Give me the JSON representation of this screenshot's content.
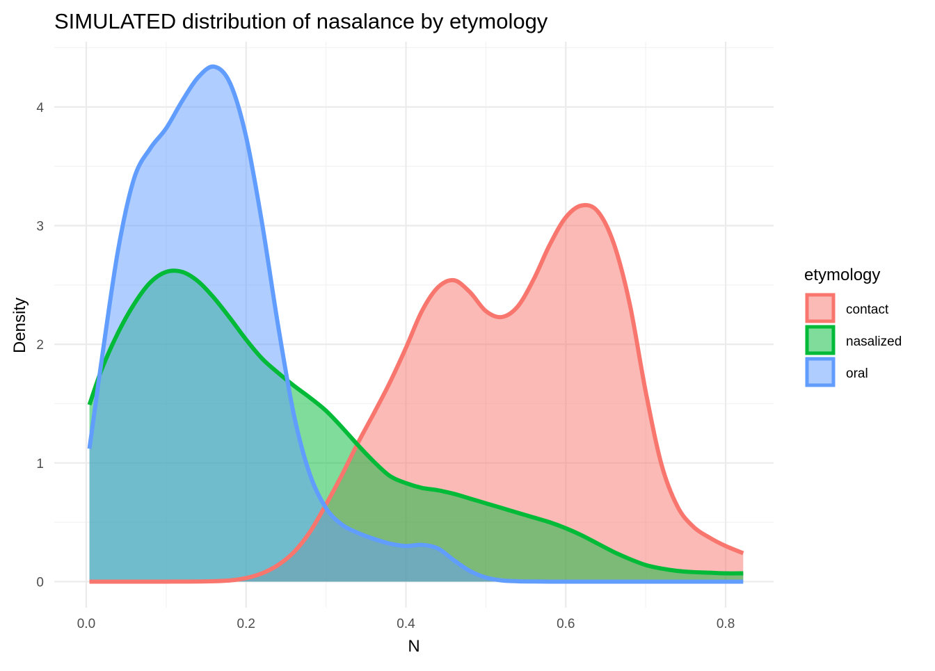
{
  "chart_data": {
    "type": "area",
    "subtype": "density",
    "title": "SIMULATED distribution of nasalance by etymology",
    "xlabel": "N",
    "ylabel": "Density",
    "xlim": [
      -0.04,
      0.86
    ],
    "ylim": [
      -0.22,
      4.55
    ],
    "xticks": [
      0.0,
      0.2,
      0.4,
      0.6,
      0.8
    ],
    "xtick_labels": [
      "0.0",
      "0.2",
      "0.4",
      "0.6",
      "0.8"
    ],
    "yticks": [
      0,
      1,
      2,
      3,
      4
    ],
    "ytick_labels": [
      "0",
      "1",
      "2",
      "3",
      "4"
    ],
    "grid": true,
    "legend": {
      "title": "etymology",
      "position": "right"
    },
    "fill_opacity": 0.5,
    "series": [
      {
        "name": "contact",
        "color": "#F8766D",
        "x": [
          0.004,
          0.05,
          0.1,
          0.15,
          0.18,
          0.2,
          0.22,
          0.24,
          0.26,
          0.28,
          0.3,
          0.32,
          0.34,
          0.36,
          0.38,
          0.4,
          0.42,
          0.44,
          0.46,
          0.48,
          0.5,
          0.52,
          0.54,
          0.56,
          0.58,
          0.6,
          0.62,
          0.64,
          0.66,
          0.68,
          0.7,
          0.72,
          0.74,
          0.76,
          0.78,
          0.8,
          0.822
        ],
        "y": [
          0.0,
          0.0,
          0.0,
          0.002,
          0.01,
          0.03,
          0.07,
          0.14,
          0.25,
          0.42,
          0.65,
          0.9,
          1.17,
          1.42,
          1.68,
          1.97,
          2.28,
          2.48,
          2.54,
          2.44,
          2.28,
          2.23,
          2.32,
          2.55,
          2.84,
          3.07,
          3.17,
          3.12,
          2.85,
          2.34,
          1.6,
          0.98,
          0.63,
          0.46,
          0.37,
          0.3,
          0.24
        ]
      },
      {
        "name": "nasalized",
        "color": "#00BA38",
        "x": [
          0.004,
          0.02,
          0.04,
          0.06,
          0.08,
          0.1,
          0.12,
          0.14,
          0.16,
          0.18,
          0.2,
          0.22,
          0.24,
          0.26,
          0.28,
          0.3,
          0.32,
          0.34,
          0.36,
          0.38,
          0.4,
          0.42,
          0.44,
          0.46,
          0.48,
          0.5,
          0.52,
          0.54,
          0.56,
          0.58,
          0.6,
          0.62,
          0.64,
          0.66,
          0.68,
          0.7,
          0.72,
          0.74,
          0.76,
          0.78,
          0.8,
          0.822
        ],
        "y": [
          1.49,
          1.8,
          2.1,
          2.34,
          2.52,
          2.61,
          2.61,
          2.53,
          2.39,
          2.22,
          2.04,
          1.88,
          1.76,
          1.65,
          1.55,
          1.44,
          1.3,
          1.15,
          1.01,
          0.89,
          0.83,
          0.79,
          0.77,
          0.74,
          0.7,
          0.66,
          0.62,
          0.58,
          0.54,
          0.5,
          0.45,
          0.39,
          0.32,
          0.25,
          0.19,
          0.14,
          0.11,
          0.09,
          0.08,
          0.075,
          0.07,
          0.07
        ]
      },
      {
        "name": "oral",
        "color": "#619CFF",
        "x": [
          0.004,
          0.02,
          0.04,
          0.06,
          0.08,
          0.1,
          0.12,
          0.14,
          0.16,
          0.18,
          0.2,
          0.22,
          0.24,
          0.26,
          0.28,
          0.3,
          0.32,
          0.34,
          0.36,
          0.38,
          0.4,
          0.42,
          0.44,
          0.46,
          0.48,
          0.5,
          0.52,
          0.54,
          0.56,
          0.58,
          0.6,
          0.62,
          0.64,
          0.66,
          0.68,
          0.7,
          0.72,
          0.74,
          0.76,
          0.78,
          0.8,
          0.822
        ],
        "y": [
          1.12,
          1.9,
          2.8,
          3.4,
          3.65,
          3.82,
          4.05,
          4.25,
          4.34,
          4.2,
          3.75,
          3.02,
          2.16,
          1.4,
          0.9,
          0.62,
          0.48,
          0.41,
          0.36,
          0.32,
          0.3,
          0.31,
          0.28,
          0.18,
          0.09,
          0.035,
          0.01,
          0.003,
          0.001,
          0.0,
          0.0,
          0.0,
          0.0,
          0.0,
          0.0,
          0.0,
          0.0,
          0.0,
          0.0,
          0.0,
          0.0,
          0.0
        ]
      }
    ]
  }
}
